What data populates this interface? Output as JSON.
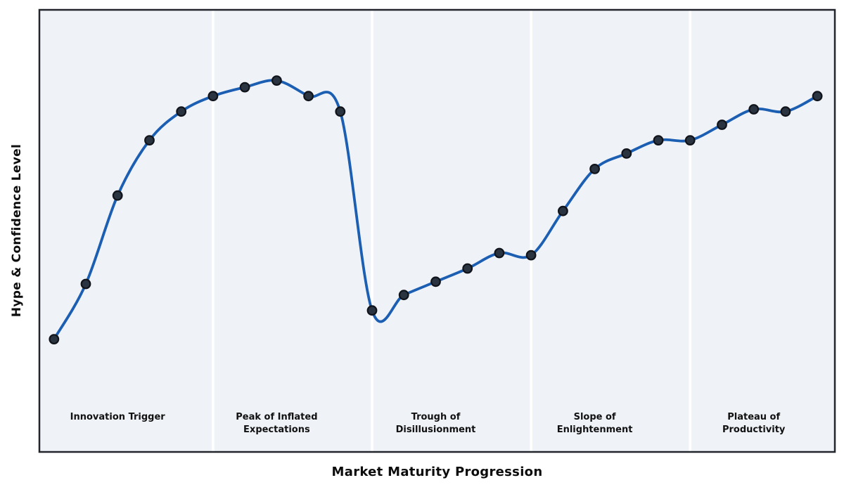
{
  "figure": {
    "background": "#ffffff"
  },
  "chart_data": {
    "type": "line",
    "title": "",
    "xlabel": "Market Maturity Progression",
    "ylabel": "Hype & Confidence Level",
    "x": [
      0,
      1,
      2,
      3,
      4,
      5,
      6,
      7,
      8,
      9,
      10,
      11,
      12,
      13,
      14,
      15,
      16,
      17,
      18,
      19,
      20,
      21,
      22,
      23,
      24
    ],
    "values": [
      25.5,
      38,
      58,
      70.5,
      77,
      80.5,
      82.5,
      84,
      80.5,
      77,
      32,
      35.5,
      38.5,
      41.5,
      45,
      44.5,
      54.5,
      64,
      67.5,
      70.5,
      70.5,
      74,
      77.5,
      77,
      80.5
    ],
    "xlim": [
      -0.46,
      24.55
    ],
    "ylim": [
      0,
      100
    ],
    "grid": false,
    "legend": "none",
    "smooth_spline": true,
    "phases": [
      {
        "label": "Innovation Trigger",
        "lines": [
          "Innovation Trigger"
        ],
        "start": -0.46,
        "end": 5,
        "label_x": 2
      },
      {
        "label": "Peak of Inflated Expectations",
        "lines": [
          "Peak of Inflated",
          "Expectations"
        ],
        "start": 5,
        "end": 10,
        "label_x": 7
      },
      {
        "label": "Trough of Disillusionment",
        "lines": [
          "Trough of",
          "Disillusionment"
        ],
        "start": 10,
        "end": 15,
        "label_x": 12
      },
      {
        "label": "Slope of Enlightenment",
        "lines": [
          "Slope of",
          "Enlightenment"
        ],
        "start": 15,
        "end": 20,
        "label_x": 17
      },
      {
        "label": "Plateau of Productivity",
        "lines": [
          "Plateau of",
          "Productivity"
        ],
        "start": 20,
        "end": 24.55,
        "label_x": 22
      }
    ],
    "divider_positions": [
      5,
      10,
      15,
      20
    ],
    "colors": {
      "line": "#1b5eb2",
      "marker_fill": "#2a3340",
      "marker_edge": "#10141a",
      "band": "#eff3f8",
      "divider": "#ffffff",
      "border": "#22252b",
      "phase_label_text": "#111111",
      "axis_label_text": "#0c0c0c"
    }
  }
}
